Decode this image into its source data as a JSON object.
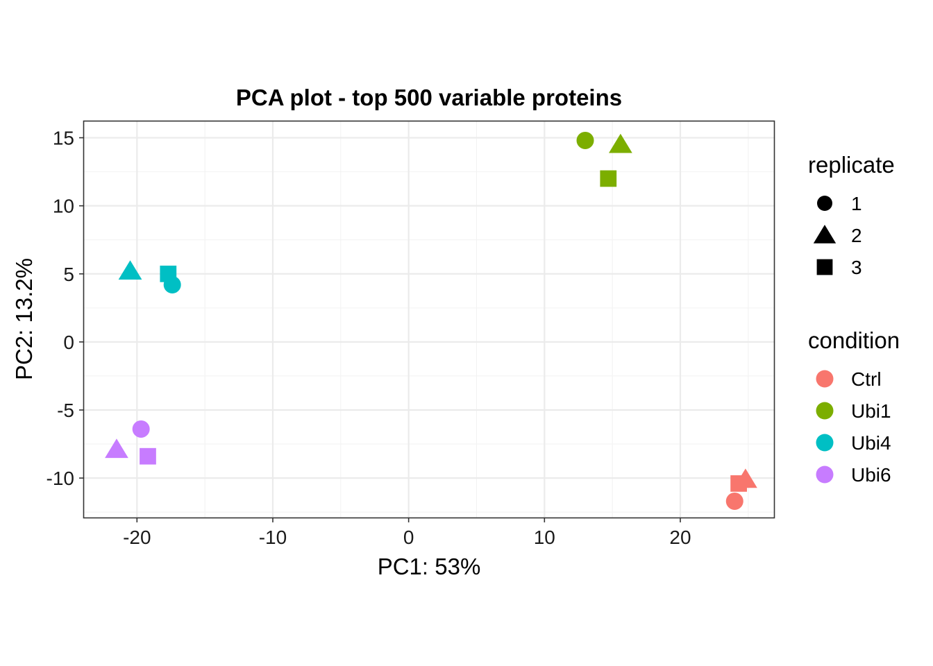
{
  "chart_data": {
    "type": "scatter",
    "title": "PCA plot - top 500 variable proteins",
    "xlabel": "PC1: 53%",
    "ylabel": "PC2: 13.2%",
    "xlim": [
      -23.9,
      26.9
    ],
    "ylim": [
      -12.9,
      16.2
    ],
    "x_ticks": [
      -20,
      -10,
      0,
      10,
      20
    ],
    "x_tick_labels": [
      "-20",
      "-10",
      "0",
      "10",
      "20"
    ],
    "y_ticks": [
      -10,
      -5,
      0,
      5,
      10,
      15
    ],
    "y_tick_labels": [
      "-10",
      "-5",
      "0",
      "5",
      "10",
      "15"
    ],
    "grid": true,
    "legend_position": "right",
    "shape_legend": {
      "title": "replicate",
      "items": [
        {
          "label": "1",
          "shape": "circle"
        },
        {
          "label": "2",
          "shape": "triangle"
        },
        {
          "label": "3",
          "shape": "square"
        }
      ]
    },
    "color_legend": {
      "title": "condition",
      "items": [
        {
          "label": "Ctrl",
          "color": "#F8766D"
        },
        {
          "label": "Ubi1",
          "color": "#7CAE00"
        },
        {
          "label": "Ubi4",
          "color": "#00BFC4"
        },
        {
          "label": "Ubi6",
          "color": "#C77CFF"
        }
      ]
    },
    "points": [
      {
        "condition": "Ctrl",
        "replicate": "1",
        "x": 24.0,
        "y": -11.7
      },
      {
        "condition": "Ctrl",
        "replicate": "2",
        "x": 24.8,
        "y": -10.1
      },
      {
        "condition": "Ctrl",
        "replicate": "3",
        "x": 24.3,
        "y": -10.4
      },
      {
        "condition": "Ubi1",
        "replicate": "1",
        "x": 13.0,
        "y": 14.8
      },
      {
        "condition": "Ubi1",
        "replicate": "2",
        "x": 15.6,
        "y": 14.5
      },
      {
        "condition": "Ubi1",
        "replicate": "3",
        "x": 14.7,
        "y": 12.0
      },
      {
        "condition": "Ubi4",
        "replicate": "1",
        "x": -17.4,
        "y": 4.2
      },
      {
        "condition": "Ubi4",
        "replicate": "2",
        "x": -20.5,
        "y": 5.2
      },
      {
        "condition": "Ubi4",
        "replicate": "3",
        "x": -17.7,
        "y": 5.0
      },
      {
        "condition": "Ubi6",
        "replicate": "1",
        "x": -19.7,
        "y": -6.4
      },
      {
        "condition": "Ubi6",
        "replicate": "2",
        "x": -21.5,
        "y": -7.9
      },
      {
        "condition": "Ubi6",
        "replicate": "3",
        "x": -19.2,
        "y": -8.4
      }
    ]
  }
}
